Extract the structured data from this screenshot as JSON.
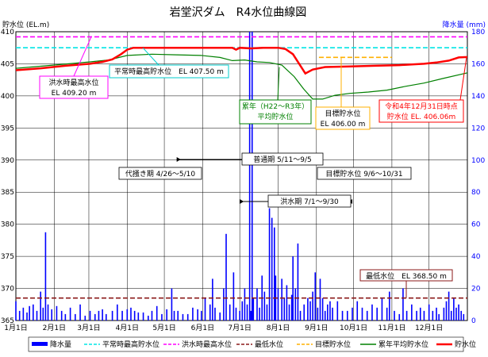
{
  "chart_data": {
    "type": "line",
    "title": "岩堂沢ダム　R4水位曲線図",
    "y_left_label": "貯水位 (EL.m)",
    "y_right_label": "降水量 (mm)",
    "y_left_lim": [
      365,
      410
    ],
    "y_left_ticks": [
      "365",
      "370",
      "375",
      "380",
      "385",
      "390",
      "395",
      "400",
      "405",
      "410"
    ],
    "y_right_lim": [
      0,
      180
    ],
    "y_right_ticks": [
      "0",
      "20",
      "40",
      "60",
      "80",
      "100",
      "120",
      "140",
      "160",
      "180"
    ],
    "x_lim": [
      0,
      365
    ],
    "x_tick_labels": [
      "1月1日",
      "2月1日",
      "3月1日",
      "4月1日",
      "5月1日",
      "6月1日",
      "7月1日",
      "8月1日",
      "9月1日",
      "10月1日",
      "11月1日",
      "12月1日"
    ],
    "x_tick_days": [
      0,
      31,
      59,
      90,
      120,
      151,
      181,
      212,
      243,
      273,
      304,
      334
    ],
    "grid": true,
    "legend_position": "bottom",
    "series": [
      {
        "name": "降水量",
        "color": "#0000ff",
        "kind": "bar-right",
        "points": [
          [
            0,
            12
          ],
          [
            3,
            6
          ],
          [
            6,
            8
          ],
          [
            9,
            5
          ],
          [
            11,
            9
          ],
          [
            14,
            10
          ],
          [
            17,
            6
          ],
          [
            20,
            18
          ],
          [
            22,
            8
          ],
          [
            24,
            55
          ],
          [
            26,
            10
          ],
          [
            29,
            7
          ],
          [
            33,
            9
          ],
          [
            37,
            6
          ],
          [
            40,
            4
          ],
          [
            44,
            8
          ],
          [
            48,
            4
          ],
          [
            52,
            10
          ],
          [
            56,
            3
          ],
          [
            60,
            6
          ],
          [
            64,
            4
          ],
          [
            67,
            6
          ],
          [
            70,
            7
          ],
          [
            73,
            4
          ],
          [
            78,
            6
          ],
          [
            82,
            10
          ],
          [
            86,
            6
          ],
          [
            90,
            7
          ],
          [
            93,
            8
          ],
          [
            96,
            6
          ],
          [
            99,
            5
          ],
          [
            103,
            5
          ],
          [
            107,
            3
          ],
          [
            110,
            6
          ],
          [
            114,
            9
          ],
          [
            118,
            4
          ],
          [
            122,
            7
          ],
          [
            126,
            20
          ],
          [
            128,
            6
          ],
          [
            131,
            6
          ],
          [
            135,
            4
          ],
          [
            139,
            4
          ],
          [
            143,
            8
          ],
          [
            147,
            7
          ],
          [
            150,
            6
          ],
          [
            153,
            14
          ],
          [
            157,
            10
          ],
          [
            159,
            26
          ],
          [
            161,
            8
          ],
          [
            165,
            5
          ],
          [
            168,
            20
          ],
          [
            170,
            54
          ],
          [
            173,
            10
          ],
          [
            176,
            30
          ],
          [
            178,
            8
          ],
          [
            181,
            6
          ],
          [
            183,
            12
          ],
          [
            185,
            20
          ],
          [
            187,
            10
          ],
          [
            189,
            180
          ],
          [
            190,
            6
          ],
          [
            191,
            180
          ],
          [
            192,
            14
          ],
          [
            195,
            20
          ],
          [
            197,
            8
          ],
          [
            199,
            28
          ],
          [
            201,
            18
          ],
          [
            203,
            10
          ],
          [
            205,
            70
          ],
          [
            207,
            64
          ],
          [
            209,
            58
          ],
          [
            210,
            28
          ],
          [
            212,
            20
          ],
          [
            215,
            26
          ],
          [
            217,
            14
          ],
          [
            219,
            22
          ],
          [
            221,
            10
          ],
          [
            223,
            16
          ],
          [
            224,
            40
          ],
          [
            226,
            20
          ],
          [
            228,
            48
          ],
          [
            230,
            6
          ],
          [
            233,
            10
          ],
          [
            236,
            14
          ],
          [
            238,
            12
          ],
          [
            240,
            18
          ],
          [
            242,
            30
          ],
          [
            244,
            8
          ],
          [
            246,
            26
          ],
          [
            248,
            14
          ],
          [
            250,
            6
          ],
          [
            252,
            10
          ],
          [
            254,
            12
          ],
          [
            256,
            8
          ],
          [
            260,
            12
          ],
          [
            264,
            6
          ],
          [
            268,
            6
          ],
          [
            272,
            8
          ],
          [
            276,
            12
          ],
          [
            280,
            8
          ],
          [
            284,
            6
          ],
          [
            288,
            10
          ],
          [
            292,
            8
          ],
          [
            296,
            14
          ],
          [
            300,
            8
          ],
          [
            302,
            18
          ],
          [
            306,
            6
          ],
          [
            310,
            4
          ],
          [
            313,
            20
          ],
          [
            316,
            6
          ],
          [
            320,
            10
          ],
          [
            324,
            6
          ],
          [
            327,
            8
          ],
          [
            330,
            6
          ],
          [
            334,
            10
          ],
          [
            337,
            6
          ],
          [
            340,
            8
          ],
          [
            342,
            4
          ],
          [
            346,
            8
          ],
          [
            348,
            12
          ],
          [
            350,
            18
          ],
          [
            352,
            6
          ],
          [
            354,
            14
          ],
          [
            356,
            8
          ],
          [
            358,
            10
          ],
          [
            360,
            6
          ],
          [
            362,
            4
          ]
        ]
      },
      {
        "name": "平常時最高貯水位",
        "color": "#00e5e5",
        "kind": "hline",
        "value": 407.5
      },
      {
        "name": "洪水時最高水位",
        "color": "#ff00ff",
        "kind": "hline",
        "value": 409.2
      },
      {
        "name": "最低水位",
        "color": "#8b1a1a",
        "kind": "hline",
        "value": 368.5
      },
      {
        "name": "目標貯水位",
        "color": "#ffb000",
        "kind": "segment",
        "x": [
          245,
          304
        ],
        "value": 406.0
      },
      {
        "name": "累年平均貯水位",
        "color": "#008000",
        "kind": "line",
        "points": [
          [
            0,
            404.3
          ],
          [
            30,
            404.8
          ],
          [
            60,
            405.3
          ],
          [
            75,
            405.6
          ],
          [
            90,
            406.3
          ],
          [
            110,
            406.5
          ],
          [
            130,
            406.4
          ],
          [
            150,
            406.3
          ],
          [
            165,
            406.0
          ],
          [
            175,
            405.5
          ],
          [
            185,
            405.6
          ],
          [
            195,
            405.3
          ],
          [
            205,
            405.2
          ],
          [
            215,
            404.8
          ],
          [
            225,
            403.0
          ],
          [
            233,
            401.0
          ],
          [
            240,
            399.5
          ],
          [
            248,
            399.5
          ],
          [
            258,
            400.1
          ],
          [
            270,
            400.4
          ],
          [
            285,
            400.6
          ],
          [
            300,
            400.9
          ],
          [
            315,
            401.5
          ],
          [
            330,
            402.0
          ],
          [
            345,
            402.7
          ],
          [
            365,
            403.6
          ]
        ]
      },
      {
        "name": "貯水位",
        "color": "#ff0000",
        "kind": "line",
        "points": [
          [
            0,
            404.0
          ],
          [
            20,
            404.3
          ],
          [
            40,
            404.7
          ],
          [
            60,
            405.0
          ],
          [
            70,
            405.3
          ],
          [
            78,
            405.7
          ],
          [
            85,
            406.5
          ],
          [
            90,
            407.2
          ],
          [
            95,
            407.5
          ],
          [
            110,
            407.5
          ],
          [
            130,
            407.5
          ],
          [
            150,
            407.5
          ],
          [
            175,
            407.5
          ],
          [
            178,
            407.2
          ],
          [
            181,
            407.5
          ],
          [
            190,
            407.4
          ],
          [
            200,
            407.5
          ],
          [
            212,
            407.5
          ],
          [
            218,
            407.3
          ],
          [
            224,
            406.5
          ],
          [
            229,
            405.0
          ],
          [
            234,
            403.5
          ],
          [
            240,
            404.1
          ],
          [
            250,
            404.5
          ],
          [
            270,
            404.6
          ],
          [
            290,
            404.7
          ],
          [
            310,
            404.8
          ],
          [
            320,
            404.9
          ],
          [
            330,
            405.0
          ],
          [
            340,
            405.2
          ],
          [
            350,
            405.5
          ],
          [
            358,
            406.0
          ],
          [
            365,
            406.06
          ]
        ]
      }
    ],
    "annotations": {
      "flood_max": "洪水時最高水位\nEL 409.20 m",
      "normal_max": "平常時最高貯水位　EL 407.50 m",
      "avg_level": "累年（H22～R3年）\n平均貯水位",
      "target": "目標貯水位\nEL 406.00 m",
      "current": "令和4年12月31日時点\n貯水位 EL. 406.06m",
      "min_level": "最低水位　EL 368.50 m",
      "period_normal": "普通期 5/11～9/5",
      "period_puddling": "代掻き期 4/26～5/10",
      "period_target": "目標貯水位 9/6～10/31",
      "period_flood": "洪水期 7/1～9/30"
    }
  }
}
